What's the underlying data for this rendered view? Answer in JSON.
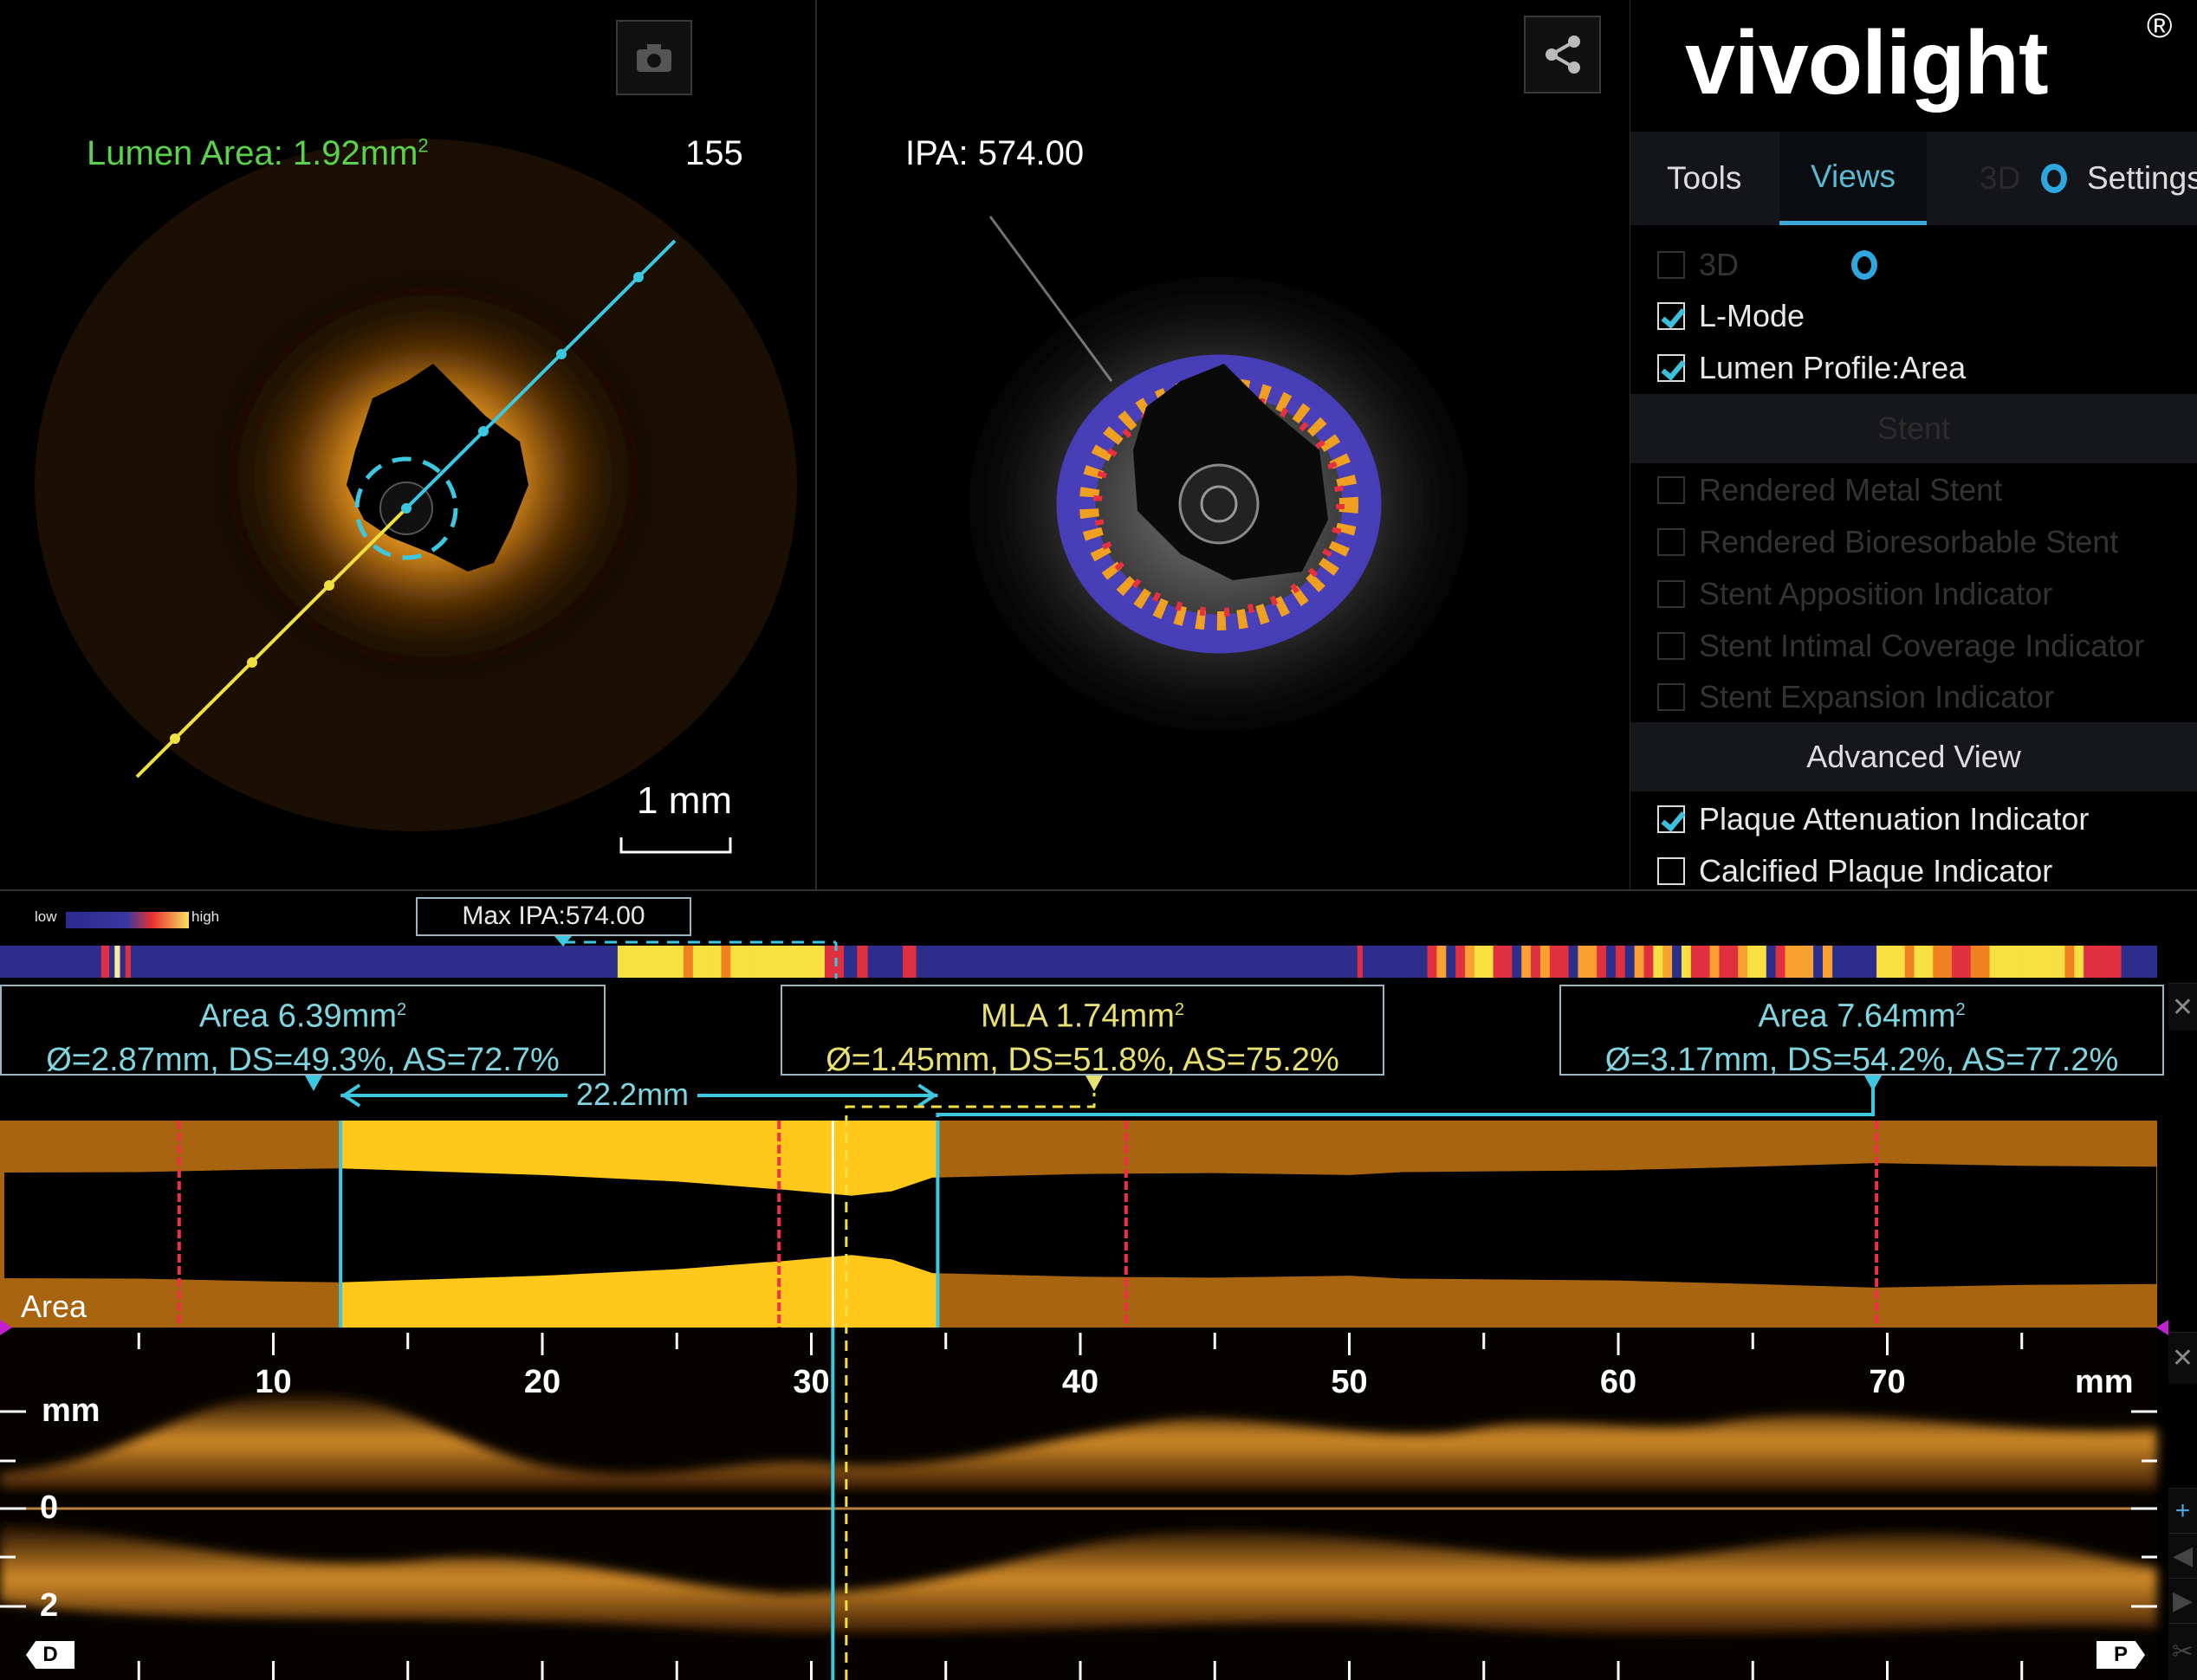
{
  "left_view": {
    "lumen_area_label": "Lumen Area: 1.92mm",
    "lumen_area_sup": "2",
    "frame_number": "155",
    "scale_label": "1 mm",
    "camera_icon": "camera-icon"
  },
  "middle_view": {
    "ipa_label": "IPA: 574.00",
    "share_icon": "share-icon"
  },
  "brand": {
    "logo": "vivolight",
    "registered": "®"
  },
  "tabs": [
    {
      "label": "Tools",
      "active": false
    },
    {
      "label": "Views",
      "active": true
    },
    {
      "label": "3D",
      "active": false,
      "disabled": true
    },
    {
      "label": "Settings",
      "active": false
    }
  ],
  "views": {
    "items": [
      {
        "label": "3D",
        "checked": false,
        "disabled": true
      },
      {
        "label": "L-Mode",
        "checked": true,
        "disabled": false
      },
      {
        "label": "Lumen Profile:Area",
        "checked": true,
        "disabled": false
      }
    ],
    "stent_header": "Stent",
    "stent_items": [
      {
        "label": "Rendered Metal Stent",
        "checked": false,
        "disabled": true
      },
      {
        "label": "Rendered Bioresorbable Stent",
        "checked": false,
        "disabled": true
      },
      {
        "label": "Stent Apposition Indicator",
        "checked": false,
        "disabled": true
      },
      {
        "label": "Stent Intimal Coverage Indicator",
        "checked": false,
        "disabled": true
      },
      {
        "label": "Stent Expansion Indicator",
        "checked": false,
        "disabled": true
      }
    ],
    "advanced_header": "Advanced View",
    "advanced_items": [
      {
        "label": "Plaque Attenuation Indicator",
        "checked": true,
        "disabled": false
      },
      {
        "label": "Calcified Plaque Indicator",
        "checked": false,
        "disabled": false
      }
    ]
  },
  "ipa_legend": {
    "low": "low",
    "high": "high"
  },
  "max_ipa": "Max IPA:574.00",
  "ipa_strip": [
    {
      "from_mm": 3.6,
      "to_mm": 3.9,
      "level": "red"
    },
    {
      "from_mm": 4.1,
      "to_mm": 4.3,
      "level": "cream"
    },
    {
      "from_mm": 4.5,
      "to_mm": 4.7,
      "level": "red"
    },
    {
      "from_mm": 22.8,
      "to_mm": 31.1,
      "level": "mixed-high"
    },
    {
      "from_mm": 31.7,
      "to_mm": 32.1,
      "level": "red"
    },
    {
      "from_mm": 33.4,
      "to_mm": 33.9,
      "level": "red"
    },
    {
      "from_mm": 50.3,
      "to_mm": 50.5,
      "level": "red"
    },
    {
      "from_mm": 52.9,
      "to_mm": 67.6,
      "level": "mixed"
    },
    {
      "from_mm": 69.6,
      "to_mm": 77.4,
      "level": "mixed-high"
    },
    {
      "from_mm": 77.4,
      "to_mm": 78.7,
      "level": "red"
    }
  ],
  "annotations": [
    {
      "title": "Area 6.39mm",
      "sup": "2",
      "detail": "Ø=2.87mm, DS=49.3%, AS=72.7%",
      "position_mm": 12.5,
      "color": "#7fd6e0"
    },
    {
      "title": "MLA 1.74mm",
      "sup": "2",
      "detail": "Ø=1.45mm, DS=51.8%, AS=75.2%",
      "position_mm": 41.0,
      "color": "#e8e070"
    },
    {
      "title": "Area 7.64mm",
      "sup": "2",
      "detail": "Ø=3.17mm, DS=54.2%, AS=77.2%",
      "position_mm": 69.5,
      "color": "#7fd6e0"
    }
  ],
  "distance_label": "22.2mm",
  "lumen_profile": {
    "label": "Area",
    "area_mm2": [
      [
        0,
        5.5
      ],
      [
        5,
        5.6
      ],
      [
        10,
        6.2
      ],
      [
        12.5,
        6.39
      ],
      [
        20,
        5.0
      ],
      [
        25,
        3.8
      ],
      [
        29,
        2.5
      ],
      [
        31.5,
        1.74
      ],
      [
        33,
        2.3
      ],
      [
        34.5,
        4.5
      ],
      [
        40,
        5.2
      ],
      [
        45,
        5.4
      ],
      [
        50,
        5.0
      ],
      [
        52,
        5.6
      ],
      [
        60,
        6.0
      ],
      [
        65,
        6.8
      ],
      [
        69.5,
        7.64
      ],
      [
        75,
        7.0
      ],
      [
        80,
        6.8
      ]
    ],
    "highlight_mm": [
      12.5,
      34.7
    ],
    "marker_mm": [
      6.5,
      28.8,
      41.7,
      69.6
    ],
    "colors": {
      "normal": "#a8640e",
      "highlight": "#ffc81a"
    }
  },
  "ruler": {
    "ticks": [
      "10",
      "20",
      "30",
      "40",
      "50",
      "60",
      "70"
    ],
    "unit": "mm",
    "max_mm": 80
  },
  "lmode": {
    "unit": "mm",
    "depth_labels": [
      "0",
      "2"
    ],
    "distal": "D",
    "proximal": "P",
    "cursor_mm": 30.8,
    "mla_cursor_mm": 31.3
  },
  "accent": "#3cc8e0"
}
